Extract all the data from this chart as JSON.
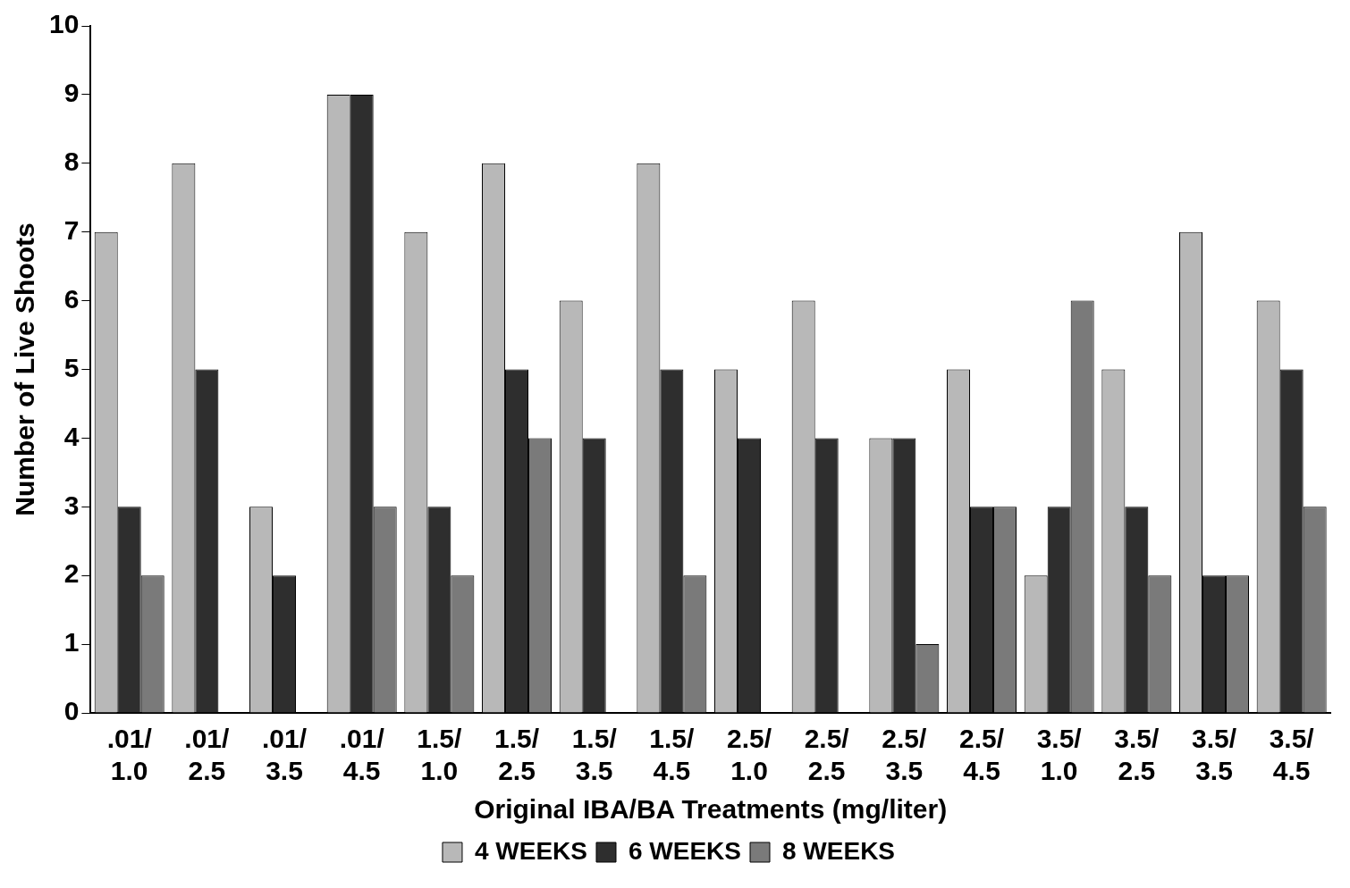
{
  "chart_data": {
    "type": "bar",
    "xlabel": "Original IBA/BA Treatments (mg/liter)",
    "ylabel": "Number of Live Shoots",
    "categories": [
      ".01/\n1.0",
      ".01/\n2.5",
      ".01/\n3.5",
      ".01/\n4.5",
      "1.5/\n1.0",
      "1.5/\n2.5",
      "1.5/\n3.5",
      "1.5/\n4.5",
      "2.5/\n1.0",
      "2.5/\n2.5",
      "2.5/\n3.5",
      "2.5/\n4.5",
      "3.5/\n1.0",
      "3.5/\n2.5",
      "3.5/\n3.5",
      "3.5/\n4.5"
    ],
    "series": [
      {
        "name": "4 WEEKS",
        "color": "#b8b8b8",
        "values": [
          7,
          8,
          3,
          9,
          7,
          8,
          6,
          8,
          5,
          6,
          4,
          5,
          2,
          5,
          7,
          6
        ]
      },
      {
        "name": "6 WEEKS",
        "color": "#2e2e2e",
        "values": [
          3,
          5,
          2,
          9,
          3,
          5,
          4,
          5,
          4,
          4,
          4,
          3,
          3,
          3,
          2,
          5
        ]
      },
      {
        "name": "8 WEEKS",
        "color": "#7a7a7a",
        "values": [
          2,
          0,
          0,
          3,
          2,
          4,
          0,
          2,
          0,
          0,
          1,
          3,
          6,
          2,
          2,
          3
        ]
      }
    ],
    "ylim": [
      0,
      10
    ],
    "yticks": [
      0,
      1,
      2,
      3,
      4,
      5,
      6,
      7,
      8,
      9,
      10
    ],
    "grid": false,
    "legend": "bottom"
  }
}
